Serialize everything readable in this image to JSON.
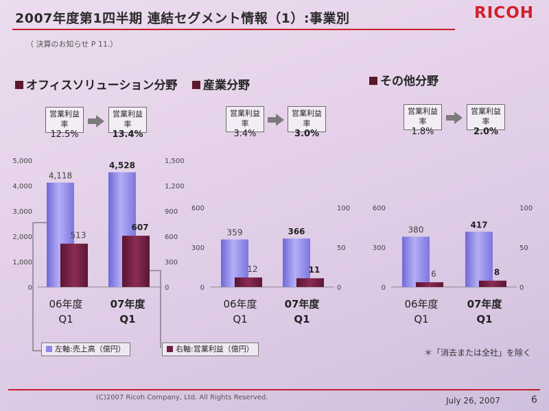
{
  "header": {
    "title": "2007年度第1四半期 連結セグメント情報（1）:事業別",
    "logo": "RICOH",
    "source": "（ 決算のお知らせ P 11.）"
  },
  "segments": [
    {
      "title": "オフィスソリューション分野",
      "margin_label": "営業利益率",
      "margin_prev": "12.5%",
      "margin_curr": "13.4%"
    },
    {
      "title": "産業分野",
      "margin_label": "営業利益率",
      "margin_prev": "3.4%",
      "margin_curr": "3.0%"
    },
    {
      "title": "その他分野",
      "margin_label": "営業利益率",
      "margin_prev": "1.8%",
      "margin_curr": "2.0%"
    }
  ],
  "legend": {
    "left": "左軸:売上高（億円）",
    "right": "右軸:営業利益（億円）"
  },
  "note": "＊「消去または全社」を除く",
  "footer": {
    "copyright": "(C)2007 Ricoh Company, Ltd. All Rights Reserved.",
    "date": "July 26, 2007",
    "page": "6"
  },
  "colors": {
    "sales": "#8e86ea",
    "profit": "#6e1f40",
    "accent": "#c61c2a"
  },
  "chart_data": [
    {
      "type": "bar",
      "title": "オフィスソリューション分野",
      "categories": [
        [
          "06年度",
          "Q1"
        ],
        [
          "07年度",
          "Q1"
        ]
      ],
      "series": [
        {
          "name": "左軸:売上高（億円）",
          "axis": "left",
          "values": [
            4118,
            4528
          ],
          "labels": [
            "4,118",
            "4,528"
          ]
        },
        {
          "name": "右軸:営業利益（億円）",
          "axis": "right",
          "values": [
            513,
            607
          ],
          "labels": [
            "513",
            "607"
          ]
        }
      ],
      "left_ticks": [
        "5,000",
        "4,000",
        "3,000",
        "2,000",
        "1,000",
        "0"
      ],
      "right_ticks": [
        "1,500",
        "1,200",
        "900",
        "600",
        "300",
        "0"
      ],
      "left_ylim": [
        0,
        5000
      ],
      "right_ylim": [
        0,
        1500
      ]
    },
    {
      "type": "bar",
      "title": "産業分野",
      "categories": [
        [
          "06年度",
          "Q1"
        ],
        [
          "07年度",
          "Q1"
        ]
      ],
      "series": [
        {
          "name": "左軸:売上高（億円）",
          "axis": "left",
          "values": [
            359,
            366
          ],
          "labels": [
            "359",
            "366"
          ]
        },
        {
          "name": "右軸:営業利益（億円）",
          "axis": "right",
          "values": [
            12,
            11
          ],
          "labels": [
            "12",
            "11"
          ]
        }
      ],
      "left_ticks": [
        "600",
        "300",
        "0"
      ],
      "right_ticks": [
        "100",
        "50",
        "0"
      ],
      "left_ylim": [
        0,
        600
      ],
      "right_ylim": [
        0,
        100
      ]
    },
    {
      "type": "bar",
      "title": "その他分野",
      "categories": [
        [
          "06年度",
          "Q1"
        ],
        [
          "07年度",
          "Q1"
        ]
      ],
      "series": [
        {
          "name": "左軸:売上高（億円）",
          "axis": "left",
          "values": [
            380,
            417
          ],
          "labels": [
            "380",
            "417"
          ]
        },
        {
          "name": "右軸:営業利益（億円）",
          "axis": "right",
          "values": [
            6,
            8
          ],
          "labels": [
            "6",
            "8"
          ]
        }
      ],
      "left_ticks": [
        "600",
        "300",
        "0"
      ],
      "right_ticks": [
        "100",
        "50",
        "0"
      ],
      "left_ylim": [
        0,
        600
      ],
      "right_ylim": [
        0,
        100
      ]
    }
  ]
}
